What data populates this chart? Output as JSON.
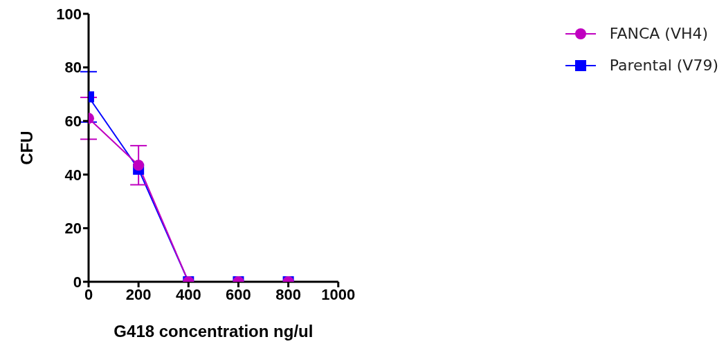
{
  "chart_data": {
    "type": "line",
    "xlabel": "G418 concentration ng/ul",
    "ylabel": "CFU",
    "x": [
      0,
      200,
      400,
      600,
      800
    ],
    "series": [
      {
        "name": "FANCA (VH4)",
        "color": "#c000c0",
        "marker": "circle",
        "values": [
          61,
          43.5,
          0,
          0,
          0
        ],
        "errors": [
          7.8,
          7.3,
          null,
          null,
          null
        ]
      },
      {
        "name": "Parental (V79)",
        "color": "#0000ff",
        "marker": "square",
        "values": [
          69,
          42,
          0,
          0,
          0
        ],
        "errors": [
          9.4,
          null,
          null,
          null,
          null
        ]
      }
    ],
    "xlim": [
      0,
      1000
    ],
    "xticks": [
      0,
      200,
      400,
      600,
      800,
      1000
    ],
    "ylim": [
      0,
      100
    ],
    "yticks": [
      0,
      20,
      40,
      60,
      80,
      100
    ],
    "grid": false,
    "legend": "top right",
    "line_style": "solid"
  }
}
